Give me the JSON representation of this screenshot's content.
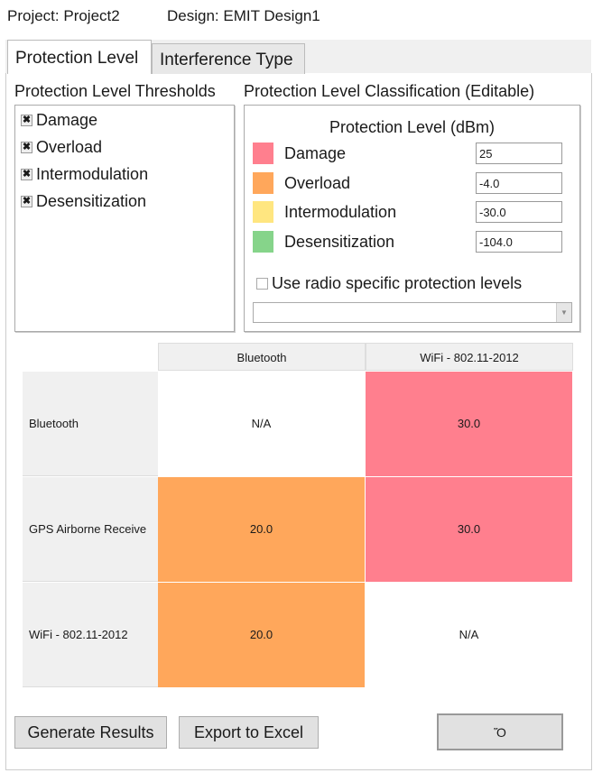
{
  "header": {
    "project": "Project: Project2",
    "design": "Design: EMIT Design1"
  },
  "tabs": [
    "Protection Level",
    "Interference Type"
  ],
  "thresholds": {
    "heading": "Protection Level Thresholds",
    "items": [
      {
        "label": "Damage",
        "checked": true
      },
      {
        "label": "Overload",
        "checked": true
      },
      {
        "label": "Intermodulation",
        "checked": true
      },
      {
        "label": "Desensitization",
        "checked": true
      }
    ]
  },
  "classification": {
    "heading": "Protection Level Classification (Editable)",
    "subheading": "Protection Level (dBm)",
    "levels": [
      {
        "label": "Damage",
        "value": "25",
        "color": "#ff7f8e"
      },
      {
        "label": "Overload",
        "value": "-4.0",
        "color": "#ffa75b"
      },
      {
        "label": "Intermodulation",
        "value": "-30.0",
        "color": "#ffe680"
      },
      {
        "label": "Desensitization",
        "value": "-104.0",
        "color": "#86d48a"
      }
    ],
    "radio_specific_label": "Use radio specific protection levels",
    "radio_specific_checked": false,
    "dropdown_value": ""
  },
  "matrix": {
    "columns": [
      "Bluetooth",
      "WiFi - 802.11-2012"
    ],
    "rows": [
      {
        "label": "Bluetooth",
        "cells": [
          {
            "value": "N/A",
            "color": "#ffffff"
          },
          {
            "value": "30.0",
            "color": "#ff7f8e"
          }
        ]
      },
      {
        "label": "GPS Airborne Receive",
        "cells": [
          {
            "value": "20.0",
            "color": "#ffa75b"
          },
          {
            "value": "30.0",
            "color": "#ff7f8e"
          }
        ]
      },
      {
        "label": "WiFi - 802.11-2012",
        "cells": [
          {
            "value": "20.0",
            "color": "#ffa75b"
          },
          {
            "value": "N/A",
            "color": "#ffffff"
          }
        ]
      }
    ]
  },
  "buttons": {
    "generate": "Generate Results",
    "export": "Export to Excel",
    "third": "Ὅ"
  }
}
